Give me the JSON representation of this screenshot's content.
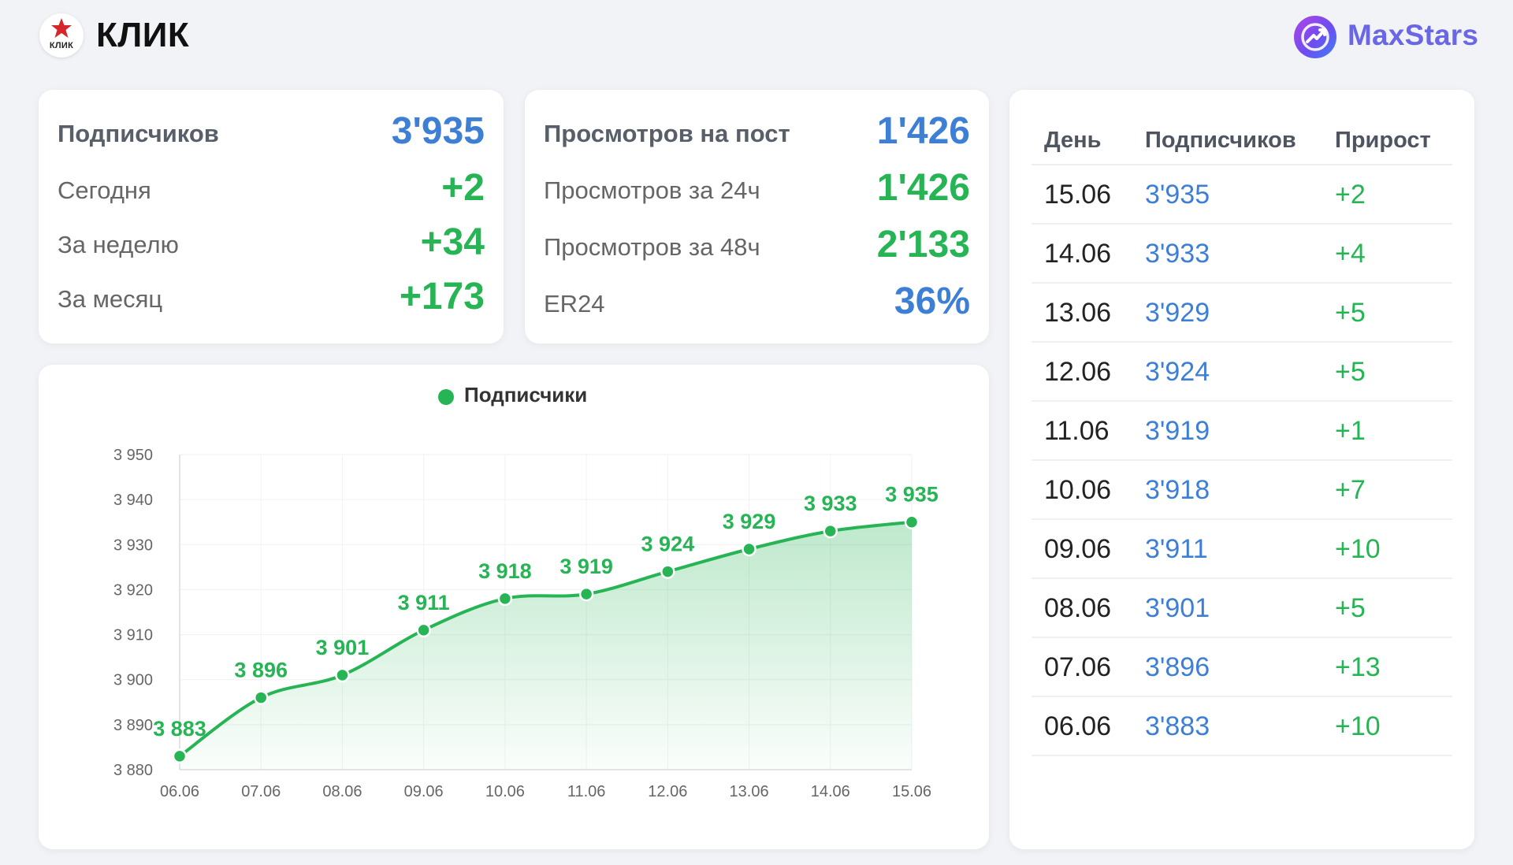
{
  "header": {
    "logo_text": "КЛИК",
    "title": "КЛИК",
    "brand_name": "MaxStars"
  },
  "subscribers_card": {
    "rows": [
      {
        "label": "Подписчиков",
        "value": "3'935"
      },
      {
        "label": "Сегодня",
        "value": "+2"
      },
      {
        "label": "За неделю",
        "value": "+34"
      },
      {
        "label": "За месяц",
        "value": "+173"
      }
    ]
  },
  "views_card": {
    "rows": [
      {
        "label": "Просмотров на пост",
        "value": "1'426"
      },
      {
        "label": "Просмотров за 24ч",
        "value": "1'426"
      },
      {
        "label": "Просмотров за 48ч",
        "value": "2'133"
      },
      {
        "label": "ER24",
        "value": "36%"
      }
    ]
  },
  "table": {
    "headers": [
      "День",
      "Подписчиков",
      "Прирост"
    ],
    "rows": [
      {
        "day": "15.06",
        "subs": "3'935",
        "gain": "+2"
      },
      {
        "day": "14.06",
        "subs": "3'933",
        "gain": "+4"
      },
      {
        "day": "13.06",
        "subs": "3'929",
        "gain": "+5"
      },
      {
        "day": "12.06",
        "subs": "3'924",
        "gain": "+5"
      },
      {
        "day": "11.06",
        "subs": "3'919",
        "gain": "+1"
      },
      {
        "day": "10.06",
        "subs": "3'918",
        "gain": "+7"
      },
      {
        "day": "09.06",
        "subs": "3'911",
        "gain": "+10"
      },
      {
        "day": "08.06",
        "subs": "3'901",
        "gain": "+5"
      },
      {
        "day": "07.06",
        "subs": "3'896",
        "gain": "+13"
      },
      {
        "day": "06.06",
        "subs": "3'883",
        "gain": "+10"
      }
    ]
  },
  "colors": {
    "accent_green": "#27b455",
    "accent_blue": "#3e7fd6",
    "brand_purple": "#6a66e6"
  },
  "chart_data": {
    "type": "area",
    "legend": "Подписчики",
    "legend_position": "top-center",
    "grid": true,
    "x": [
      "06.06",
      "07.06",
      "08.06",
      "09.06",
      "10.06",
      "11.06",
      "12.06",
      "13.06",
      "14.06",
      "15.06"
    ],
    "series": [
      {
        "name": "Подписчики",
        "values": [
          3883,
          3896,
          3901,
          3911,
          3918,
          3919,
          3924,
          3929,
          3933,
          3935
        ],
        "color": "#27b455"
      }
    ],
    "data_labels": [
      "3 883",
      "3 896",
      "3 901",
      "3 911",
      "3 918",
      "3 919",
      "3 924",
      "3 929",
      "3 933",
      "3 935"
    ],
    "ylim": [
      3880,
      3950
    ],
    "yticks": [
      3880,
      3890,
      3900,
      3910,
      3920,
      3930,
      3940,
      3950
    ],
    "ytick_labels": [
      "3 880",
      "3 890",
      "3 900",
      "3 910",
      "3 920",
      "3 930",
      "3 940",
      "3 950"
    ]
  }
}
